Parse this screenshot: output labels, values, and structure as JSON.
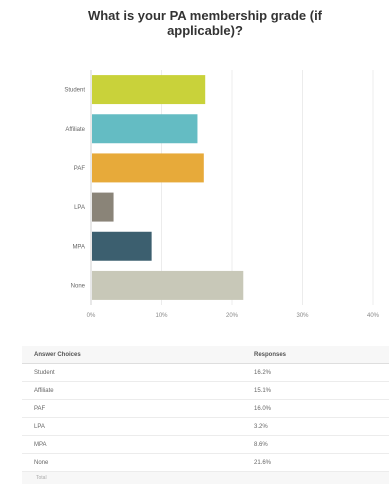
{
  "chart_data": {
    "type": "bar",
    "orientation": "horizontal",
    "title": "What is your PA membership grade (if applicable)?",
    "subtitle": "",
    "categories": [
      "Student",
      "Affiliate",
      "PAF",
      "LPA",
      "MPA",
      "None"
    ],
    "values": [
      16.2,
      15.1,
      16.0,
      3.2,
      8.6,
      21.6
    ],
    "colors": [
      "#c9d23a",
      "#64bcc3",
      "#e7aa3a",
      "#8a8478",
      "#3c5f6f",
      "#c8c8b8"
    ],
    "xlim": [
      0,
      40
    ],
    "xticks": [
      "0%",
      "10%",
      "20%",
      "30%",
      "40%"
    ],
    "xtick_values": [
      0,
      10,
      20,
      30,
      40
    ],
    "grid": true
  },
  "table": {
    "headers": [
      "Answer Choices",
      "Responses"
    ],
    "rows": [
      {
        "label": "Student",
        "value": "16.2%"
      },
      {
        "label": "Affiliate",
        "value": "15.1%"
      },
      {
        "label": "PAF",
        "value": "16.0%"
      },
      {
        "label": "LPA",
        "value": "3.2%"
      },
      {
        "label": "MPA",
        "value": "8.6%"
      },
      {
        "label": "None",
        "value": "21.6%"
      }
    ],
    "footer": "Total"
  }
}
